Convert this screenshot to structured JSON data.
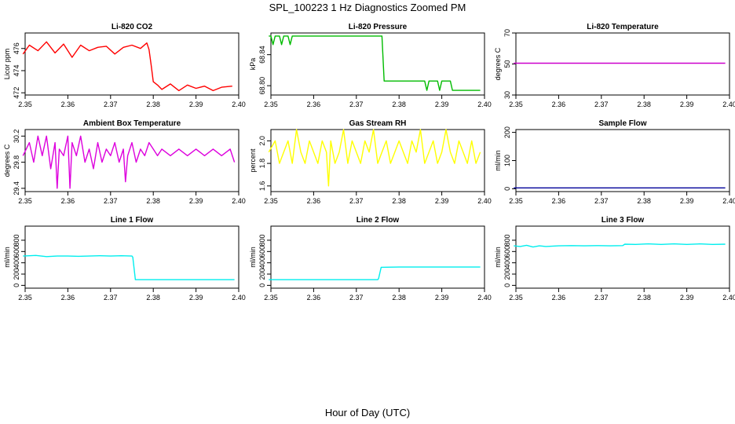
{
  "figure": {
    "title": "SPL_100223  1 Hz Diagnostics Zoomed PM",
    "xlabel": "Hour of Day (UTC)"
  },
  "chart_data": [
    {
      "type": "line",
      "title": "Li-820 CO2",
      "ylabel": "Licor ppm",
      "color": "#ff0000",
      "xlim": [
        2.35,
        2.4
      ],
      "ylim": [
        471.8,
        477.4
      ],
      "xticks": [
        2.35,
        2.36,
        2.37,
        2.38,
        2.39,
        2.4
      ],
      "yticks": [
        472,
        474,
        476
      ],
      "series": [
        {
          "name": "CO2",
          "x": [
            2.3495,
            2.351,
            2.353,
            2.355,
            2.357,
            2.359,
            2.361,
            2.363,
            2.365,
            2.367,
            2.369,
            2.371,
            2.373,
            2.375,
            2.377,
            2.3785,
            2.379,
            2.3795,
            2.38,
            2.381,
            2.382,
            2.384,
            2.386,
            2.388,
            2.39,
            2.392,
            2.394,
            2.396,
            2.3985
          ],
          "y": [
            475.5,
            476.3,
            475.8,
            476.6,
            475.6,
            476.4,
            475.2,
            476.3,
            475.8,
            476.1,
            476.2,
            475.5,
            476.1,
            476.3,
            476.0,
            476.5,
            475.9,
            474.5,
            473.0,
            472.7,
            472.3,
            472.8,
            472.2,
            472.7,
            472.4,
            472.6,
            472.2,
            472.5,
            472.6
          ]
        }
      ]
    },
    {
      "type": "line",
      "title": "Li-820 Pressure",
      "ylabel": "kPa",
      "color": "#00bb00",
      "xlim": [
        2.35,
        2.4
      ],
      "ylim": [
        68.788,
        68.868
      ],
      "xticks": [
        2.35,
        2.36,
        2.37,
        2.38,
        2.39,
        2.4
      ],
      "yticks": [
        68.8,
        68.84
      ],
      "series": [
        {
          "name": "Pressure",
          "x": [
            2.3495,
            2.35,
            2.3505,
            2.351,
            2.352,
            2.3525,
            2.353,
            2.354,
            2.3545,
            2.355,
            2.3555,
            2.356,
            2.376,
            2.3765,
            2.386,
            2.3865,
            2.387,
            2.388,
            2.389,
            2.3895,
            2.39,
            2.392,
            2.3925,
            2.393,
            2.399
          ],
          "y": [
            68.864,
            68.864,
            68.853,
            68.864,
            68.864,
            68.853,
            68.864,
            68.864,
            68.853,
            68.864,
            68.864,
            68.864,
            68.864,
            68.806,
            68.806,
            68.794,
            68.806,
            68.806,
            68.806,
            68.794,
            68.806,
            68.806,
            68.794,
            68.794,
            68.794
          ]
        }
      ]
    },
    {
      "type": "line",
      "title": "Li-820 Temperature",
      "ylabel": "degrees C",
      "color": "#cc00cc",
      "xlim": [
        2.35,
        2.4
      ],
      "ylim": [
        30,
        70
      ],
      "xticks": [
        2.35,
        2.36,
        2.37,
        2.38,
        2.39,
        2.4
      ],
      "yticks": [
        30,
        50,
        70
      ],
      "series": [
        {
          "name": "Temperature",
          "x": [
            2.3495,
            2.399
          ],
          "y": [
            50.5,
            50.5
          ]
        }
      ]
    },
    {
      "type": "line",
      "title": "Ambient Box Temperature",
      "ylabel": "degrees C",
      "color": "#dd00dd",
      "xlim": [
        2.35,
        2.4
      ],
      "ylim": [
        29.35,
        30.3
      ],
      "xticks": [
        2.35,
        2.36,
        2.37,
        2.38,
        2.39,
        2.4
      ],
      "yticks": [
        29.4,
        29.8,
        30.2
      ],
      "series": [
        {
          "name": "Ambient",
          "x": [
            2.3495,
            2.351,
            2.352,
            2.353,
            2.354,
            2.355,
            2.356,
            2.357,
            2.3575,
            2.358,
            2.359,
            2.36,
            2.3605,
            2.361,
            2.362,
            2.363,
            2.364,
            2.365,
            2.366,
            2.367,
            2.368,
            2.369,
            2.37,
            2.371,
            2.372,
            2.373,
            2.3735,
            2.374,
            2.375,
            2.376,
            2.377,
            2.378,
            2.379,
            2.38,
            2.381,
            2.382,
            2.384,
            2.386,
            2.388,
            2.39,
            2.392,
            2.394,
            2.396,
            2.398,
            2.399
          ],
          "y": [
            29.9,
            30.1,
            29.8,
            30.2,
            29.9,
            30.2,
            29.7,
            30.1,
            29.4,
            30.0,
            29.9,
            30.2,
            29.4,
            30.1,
            29.9,
            30.2,
            29.8,
            30.0,
            29.7,
            30.1,
            29.8,
            30.0,
            29.9,
            30.1,
            29.8,
            30.0,
            29.5,
            29.9,
            30.1,
            29.8,
            30.0,
            29.9,
            30.1,
            30.0,
            29.9,
            30.0,
            29.9,
            30.0,
            29.9,
            30.0,
            29.9,
            30.0,
            29.9,
            30.0,
            29.8
          ]
        }
      ]
    },
    {
      "type": "line",
      "title": "Gas Stream RH",
      "ylabel": "percent",
      "color": "#ffff00",
      "xlim": [
        2.35,
        2.4
      ],
      "ylim": [
        1.55,
        2.1
      ],
      "xticks": [
        2.35,
        2.36,
        2.37,
        2.38,
        2.39,
        2.4
      ],
      "yticks": [
        1.6,
        1.8,
        2.0
      ],
      "series": [
        {
          "name": "RH",
          "x": [
            2.3495,
            2.351,
            2.352,
            2.353,
            2.354,
            2.355,
            2.356,
            2.357,
            2.358,
            2.359,
            2.36,
            2.361,
            2.362,
            2.363,
            2.3635,
            2.364,
            2.365,
            2.366,
            2.367,
            2.368,
            2.369,
            2.37,
            2.371,
            2.372,
            2.373,
            2.374,
            2.375,
            2.376,
            2.377,
            2.378,
            2.379,
            2.38,
            2.381,
            2.382,
            2.383,
            2.384,
            2.385,
            2.386,
            2.387,
            2.388,
            2.389,
            2.39,
            2.391,
            2.392,
            2.393,
            2.394,
            2.395,
            2.396,
            2.397,
            2.398,
            2.399
          ],
          "y": [
            1.9,
            2.0,
            1.8,
            1.9,
            2.0,
            1.8,
            2.1,
            1.9,
            1.8,
            2.0,
            1.9,
            1.8,
            2.0,
            1.9,
            1.6,
            2.0,
            1.8,
            1.9,
            2.1,
            1.8,
            2.0,
            1.9,
            1.8,
            2.0,
            1.9,
            2.1,
            1.8,
            1.9,
            2.0,
            1.8,
            1.9,
            2.0,
            1.9,
            1.8,
            2.0,
            1.9,
            2.1,
            1.8,
            1.9,
            2.0,
            1.8,
            1.9,
            2.1,
            1.9,
            1.8,
            2.0,
            1.9,
            1.8,
            2.0,
            1.8,
            1.9
          ]
        }
      ]
    },
    {
      "type": "line",
      "title": "Sample Flow",
      "ylabel": "ml/min",
      "color": "#000099",
      "xlim": [
        2.35,
        2.4
      ],
      "ylim": [
        -10,
        210
      ],
      "xticks": [
        2.35,
        2.36,
        2.37,
        2.38,
        2.39,
        2.4
      ],
      "yticks": [
        0,
        100,
        200
      ],
      "series": [
        {
          "name": "Sample",
          "x": [
            2.3495,
            2.399
          ],
          "y": [
            3,
            3
          ]
        }
      ]
    },
    {
      "type": "line",
      "title": "Line 1 Flow",
      "ylabel": "ml/min",
      "color": "#00eeee",
      "xlim": [
        2.35,
        2.4
      ],
      "ylim": [
        -50,
        1050
      ],
      "xticks": [
        2.35,
        2.36,
        2.37,
        2.38,
        2.39,
        2.4
      ],
      "yticks": [
        0,
        200,
        400,
        600,
        800
      ],
      "series": [
        {
          "name": "Line 1",
          "x": [
            2.3495,
            2.3525,
            2.355,
            2.3575,
            2.36,
            2.3625,
            2.365,
            2.3675,
            2.37,
            2.3725,
            2.375,
            2.3752,
            2.3758,
            2.38,
            2.385,
            2.39,
            2.395,
            2.399
          ],
          "y": [
            520,
            530,
            510,
            520,
            520,
            515,
            520,
            525,
            520,
            525,
            520,
            500,
            100,
            100,
            100,
            100,
            100,
            100
          ]
        }
      ]
    },
    {
      "type": "line",
      "title": "Line 2 Flow",
      "ylabel": "ml/min",
      "color": "#00eeee",
      "xlim": [
        2.35,
        2.4
      ],
      "ylim": [
        -50,
        1050
      ],
      "xticks": [
        2.35,
        2.36,
        2.37,
        2.38,
        2.39,
        2.4
      ],
      "yticks": [
        0,
        200,
        400,
        600,
        800
      ],
      "series": [
        {
          "name": "Line 2",
          "x": [
            2.3495,
            2.355,
            2.36,
            2.365,
            2.37,
            2.375,
            2.3752,
            2.3758,
            2.38,
            2.385,
            2.39,
            2.395,
            2.399
          ],
          "y": [
            100,
            100,
            100,
            100,
            100,
            100,
            120,
            320,
            325,
            325,
            325,
            325,
            325
          ]
        }
      ]
    },
    {
      "type": "line",
      "title": "Line 3 Flow",
      "ylabel": "ml/min",
      "color": "#00eeee",
      "xlim": [
        2.35,
        2.4
      ],
      "ylim": [
        -50,
        1050
      ],
      "xticks": [
        2.35,
        2.36,
        2.37,
        2.38,
        2.39,
        2.4
      ],
      "yticks": [
        0,
        200,
        400,
        600,
        800
      ],
      "series": [
        {
          "name": "Line 3",
          "x": [
            2.3495,
            2.351,
            2.3525,
            2.354,
            2.3555,
            2.357,
            2.36,
            2.363,
            2.366,
            2.369,
            2.372,
            2.375,
            2.3755,
            2.378,
            2.381,
            2.384,
            2.387,
            2.39,
            2.393,
            2.396,
            2.399
          ],
          "y": [
            700,
            690,
            710,
            680,
            700,
            690,
            700,
            705,
            700,
            705,
            700,
            705,
            730,
            725,
            735,
            725,
            735,
            725,
            735,
            725,
            730
          ]
        }
      ]
    }
  ]
}
